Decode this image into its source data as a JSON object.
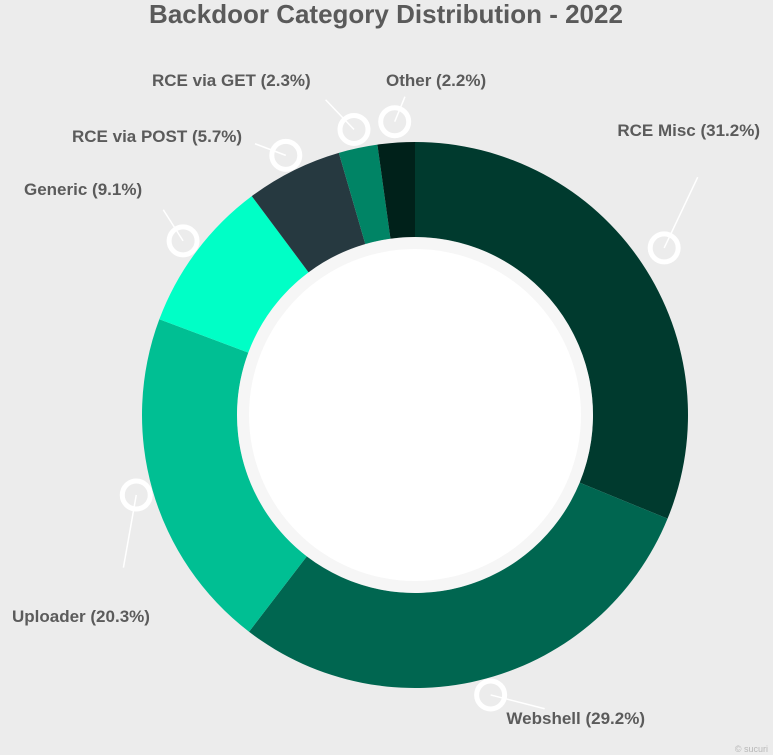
{
  "chart_data": {
    "type": "pie",
    "variant": "donut",
    "title": "Backdoor Category Distribution - 2022",
    "slices": [
      {
        "label": "RCE Misc (31.2%)",
        "value": 31.2,
        "color": "#003a2e"
      },
      {
        "label": "Webshell (29.2%)",
        "value": 29.2,
        "color": "#006650"
      },
      {
        "label": "Uploader (20.3%)",
        "value": 20.3,
        "color": "#00bf93"
      },
      {
        "label": "Generic (9.1%)",
        "value": 9.1,
        "color": "#00ffc6"
      },
      {
        "label": "RCE via POST (5.7%)",
        "value": 5.7,
        "color": "#263940"
      },
      {
        "label": "RCE via GET (2.3%)",
        "value": 2.3,
        "color": "#008465"
      },
      {
        "label": "Other (2.2%)",
        "value": 2.2,
        "color": "#00211a"
      }
    ],
    "legend": "none"
  },
  "watermark": "© sucuri"
}
